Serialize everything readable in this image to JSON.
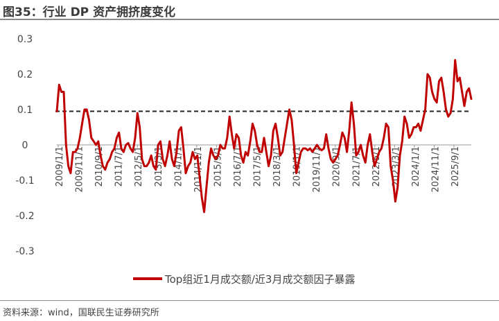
{
  "figure": {
    "title": "图35：行业 DP 资产拥挤度变化",
    "source": "资料来源：wind，国联民生证券研究所"
  },
  "chart_data": {
    "type": "line",
    "title": "",
    "xlabel": "",
    "ylabel": "",
    "ylim": [
      -0.3,
      0.3
    ],
    "yticks": [
      "0.3",
      "0.2",
      "0.1",
      "0",
      "-0.1",
      "-0.2",
      "-0.3"
    ],
    "xticks": [
      "2009/1/1",
      "2009/11/1",
      "2010/9/1",
      "2011/7/1",
      "2012/5/1",
      "2013/3/1",
      "2014/1/1",
      "2014/11/1",
      "2015/9/1",
      "2016/7/1",
      "2017/5/1",
      "2018/3/1",
      "2019/1/1",
      "2019/11/1",
      "2020/9/1",
      "2021/7/1",
      "2022/5/1",
      "2023/3/1",
      "2024/1/1",
      "2024/11/1",
      "2025/9/1"
    ],
    "legend_position": "bottom",
    "reference_line": {
      "value": 0.095,
      "style": "dashed",
      "color": "#222222"
    },
    "series": [
      {
        "name": "Top组近1月成交额/近3月成交额因子暴露",
        "color": "#c00000",
        "values": [
          0.095,
          0.17,
          0.15,
          0.15,
          0.0,
          -0.06,
          -0.08,
          -0.02,
          -0.02,
          -0.01,
          0.02,
          0.06,
          0.1,
          0.1,
          0.07,
          0.02,
          0.01,
          0.0,
          0.01,
          -0.03,
          -0.06,
          -0.07,
          -0.05,
          -0.04,
          -0.02,
          -0.01,
          0.02,
          0.035,
          -0.01,
          -0.02,
          0.0,
          0.005,
          -0.01,
          -0.02,
          0.02,
          0.09,
          0.05,
          -0.04,
          -0.06,
          -0.06,
          -0.05,
          -0.03,
          -0.06,
          -0.07,
          0.0,
          0.01,
          -0.04,
          -0.06,
          -0.03,
          0.01,
          -0.04,
          -0.06,
          -0.02,
          0.04,
          0.05,
          -0.01,
          -0.08,
          -0.06,
          -0.05,
          -0.02,
          -0.04,
          -0.03,
          -0.09,
          -0.15,
          -0.19,
          -0.12,
          -0.05,
          -0.01,
          -0.03,
          -0.04,
          -0.03,
          0.0,
          -0.01,
          -0.01,
          0.02,
          0.08,
          0.03,
          -0.01,
          0.03,
          0.02,
          -0.03,
          -0.05,
          -0.02,
          -0.03,
          0.01,
          0.06,
          0.04,
          0.0,
          -0.02,
          -0.02,
          0.02,
          -0.02,
          -0.06,
          -0.03,
          0.04,
          0.06,
          0.02,
          -0.03,
          -0.02,
          0.02,
          0.06,
          0.1,
          0.07,
          0.0,
          -0.08,
          -0.05,
          -0.02,
          -0.01,
          -0.01,
          -0.015,
          -0.01,
          -0.02,
          -0.01,
          0.0,
          -0.01,
          -0.015,
          -0.01,
          0.03,
          -0.01,
          -0.04,
          -0.05,
          -0.04,
          -0.03,
          0.0,
          0.035,
          0.02,
          -0.02,
          0.04,
          0.12,
          0.06,
          -0.03,
          -0.02,
          0.0,
          -0.03,
          -0.05,
          0.0,
          0.03,
          -0.02,
          -0.06,
          -0.04,
          -0.02,
          -0.01,
          0.02,
          0.06,
          0.05,
          -0.06,
          -0.1,
          -0.16,
          -0.12,
          -0.03,
          0.01,
          0.08,
          0.06,
          0.02,
          0.03,
          0.05,
          0.05,
          0.06,
          0.04,
          0.07,
          0.1,
          0.2,
          0.19,
          0.15,
          0.13,
          0.12,
          0.18,
          0.19,
          0.15,
          0.1,
          0.08,
          0.09,
          0.13,
          0.24,
          0.18,
          0.19,
          0.15,
          0.11,
          0.15,
          0.16,
          0.13
        ]
      }
    ]
  }
}
